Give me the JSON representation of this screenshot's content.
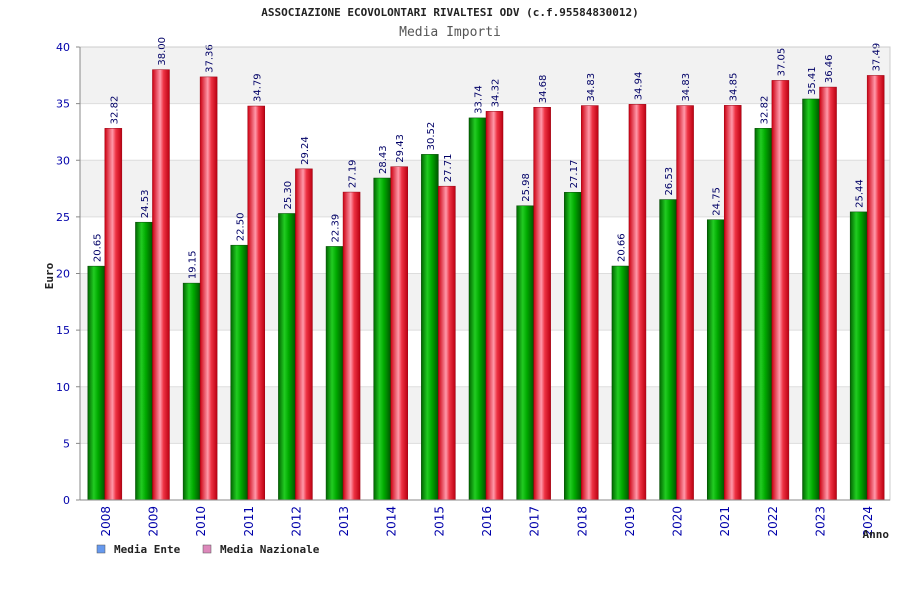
{
  "chart_data": {
    "type": "bar",
    "title": "ASSOCIAZIONE ECOVOLONTARI RIVALTESI ODV (c.f.95584830012)",
    "subtitle": "Media Importi",
    "xlabel": "Anno",
    "ylabel": "Euro",
    "ylim": [
      0,
      40
    ],
    "yticks": [
      0,
      5,
      10,
      15,
      20,
      25,
      30,
      35,
      40
    ],
    "grid": true,
    "legend_position": "bottom-left",
    "categories": [
      "2008",
      "2009",
      "2010",
      "2011",
      "2012",
      "2013",
      "2014",
      "2015",
      "2016",
      "2017",
      "2018",
      "2019",
      "2020",
      "2021",
      "2022",
      "2023",
      "2024"
    ],
    "series": [
      {
        "name": "Media Ente",
        "color": "#00aa00",
        "legend_color": "#6699ee",
        "values": [
          20.65,
          24.53,
          19.15,
          22.5,
          25.3,
          22.39,
          28.43,
          30.52,
          33.74,
          25.98,
          27.17,
          20.66,
          26.53,
          24.75,
          32.82,
          35.41,
          25.44
        ],
        "labels": [
          "20.65",
          "24.53",
          "19.15",
          "22.50",
          "25.30",
          "22.39",
          "28.43",
          "30.52",
          "33.74",
          "25.98",
          "27.17",
          "20.66",
          "26.53",
          "24.75",
          "32.82",
          "35.41",
          "25.44"
        ]
      },
      {
        "name": "Media Nazionale",
        "color": "#ee2233",
        "legend_color": "#dd88bb",
        "values": [
          32.82,
          38.0,
          37.36,
          34.79,
          29.24,
          27.19,
          29.43,
          27.71,
          34.32,
          34.68,
          34.83,
          34.94,
          34.83,
          34.85,
          37.05,
          36.46,
          37.49
        ],
        "labels": [
          "32.82",
          "38.00",
          "37.36",
          "34.79",
          "29.24",
          "27.19",
          "29.43",
          "27.71",
          "34.32",
          "34.68",
          "34.83",
          "34.94",
          "34.83",
          "34.85",
          "37.05",
          "36.46",
          "37.49"
        ]
      }
    ]
  }
}
